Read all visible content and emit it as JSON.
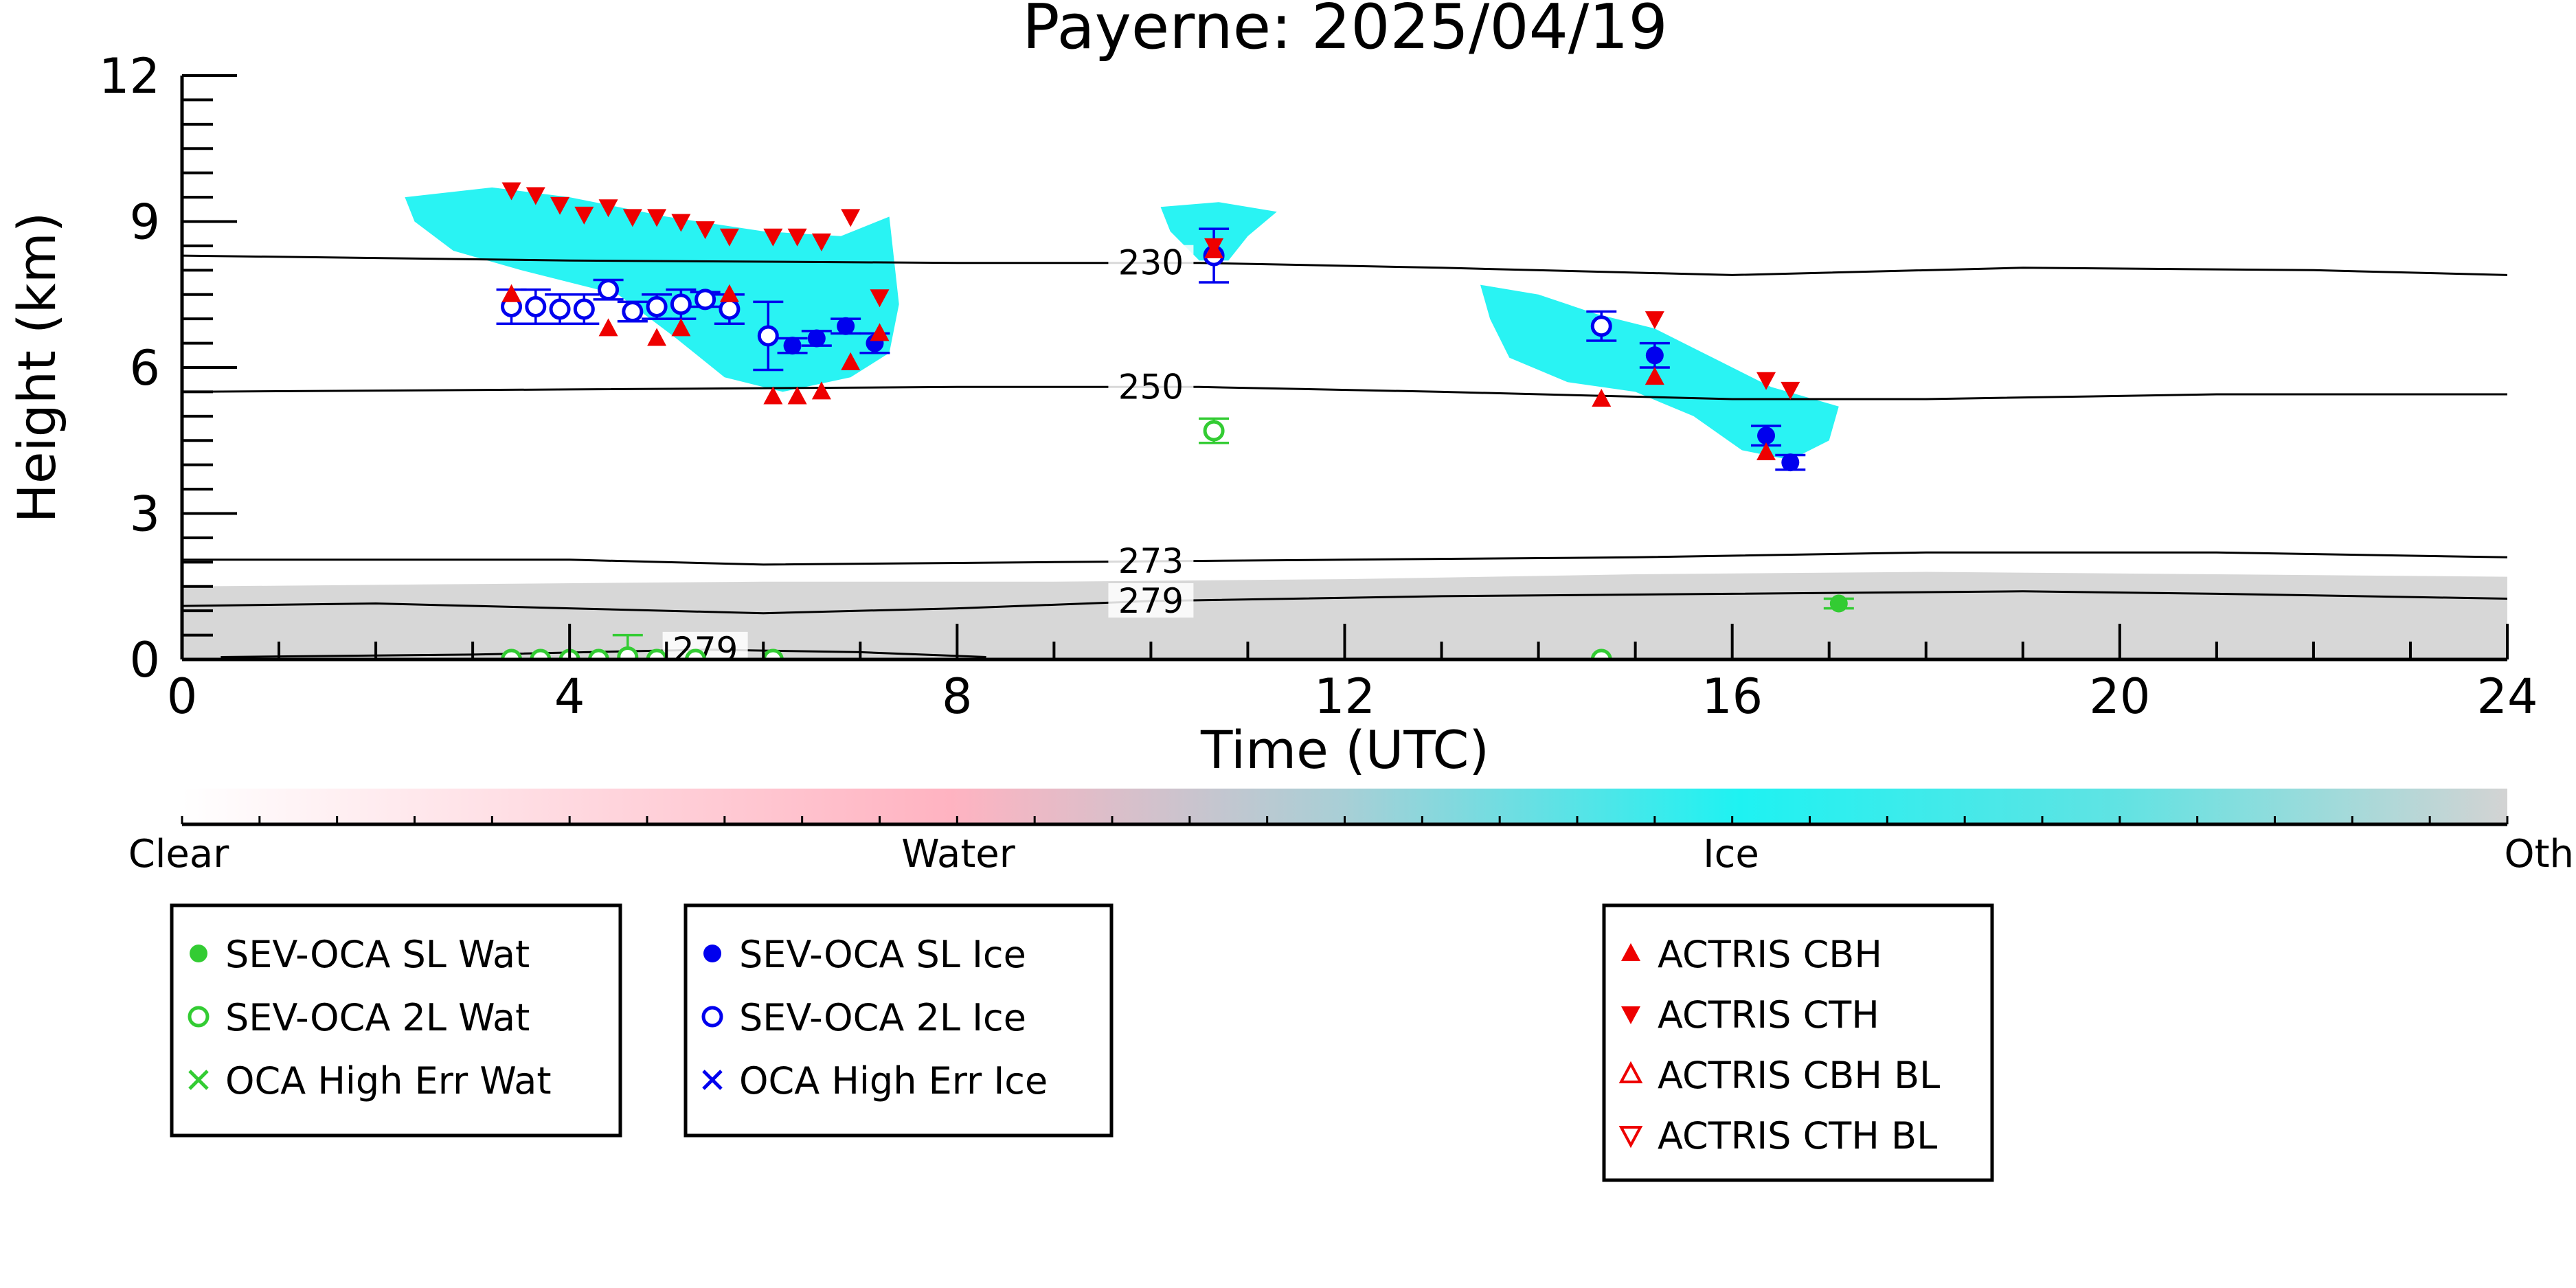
{
  "chart_data": {
    "type": "scatter",
    "title": "Payerne: 2025/04/19",
    "xlabel": "Time (UTC)",
    "ylabel": "Height (km)",
    "xlim": [
      0,
      24
    ],
    "ylim": [
      0,
      12
    ],
    "xticks": [
      "0",
      "4",
      "8",
      "12",
      "16",
      "20",
      "24"
    ],
    "yticks": [
      "0",
      "3",
      "6",
      "9",
      "12"
    ],
    "grid": false,
    "isotherms": [
      {
        "label": "230",
        "label_x": 10.0,
        "points": [
          [
            0,
            8.3
          ],
          [
            4,
            8.2
          ],
          [
            8,
            8.15
          ],
          [
            10.5,
            8.15
          ],
          [
            13,
            8.05
          ],
          [
            16,
            7.9
          ],
          [
            19,
            8.05
          ],
          [
            22,
            8.0
          ],
          [
            24,
            7.9
          ]
        ]
      },
      {
        "label": "250",
        "label_x": 10.0,
        "points": [
          [
            0,
            5.5
          ],
          [
            4,
            5.55
          ],
          [
            8,
            5.6
          ],
          [
            10.5,
            5.6
          ],
          [
            13,
            5.5
          ],
          [
            16,
            5.35
          ],
          [
            18,
            5.35
          ],
          [
            21,
            5.45
          ],
          [
            24,
            5.45
          ]
        ]
      },
      {
        "label": "273",
        "label_x": 10.0,
        "points": [
          [
            0,
            2.05
          ],
          [
            4,
            2.05
          ],
          [
            6,
            1.95
          ],
          [
            9,
            2.0
          ],
          [
            12,
            2.05
          ],
          [
            15,
            2.1
          ],
          [
            18,
            2.2
          ],
          [
            21,
            2.2
          ],
          [
            24,
            2.1
          ]
        ]
      },
      {
        "label": "279",
        "label_x": 10.0,
        "points": [
          [
            0,
            1.1
          ],
          [
            2,
            1.15
          ],
          [
            4,
            1.05
          ],
          [
            6,
            0.95
          ],
          [
            8,
            1.05
          ],
          [
            10,
            1.2
          ],
          [
            13,
            1.3
          ],
          [
            16,
            1.35
          ],
          [
            19,
            1.4
          ],
          [
            21,
            1.35
          ],
          [
            24,
            1.25
          ]
        ]
      },
      {
        "label": "279",
        "label_x": 5.4,
        "points": [
          [
            0.4,
            0.05
          ],
          [
            3,
            0.1
          ],
          [
            5.4,
            0.2
          ],
          [
            7,
            0.15
          ],
          [
            8.3,
            0.05
          ]
        ]
      }
    ],
    "cloud_mask": {
      "colors": {
        "ice": "#1ef2f2",
        "water": "#ffb3c1",
        "other": "#d3d3d3"
      },
      "regions": [
        {
          "class": "ice",
          "points": [
            [
              2.3,
              9.5
            ],
            [
              3.2,
              9.7
            ],
            [
              4,
              9.5
            ],
            [
              5,
              9.1
            ],
            [
              6,
              8.8
            ],
            [
              6.8,
              8.7
            ],
            [
              7.3,
              9.1
            ],
            [
              7.4,
              7.3
            ],
            [
              7.3,
              6.3
            ],
            [
              6.9,
              5.8
            ],
            [
              6.2,
              5.5
            ],
            [
              5.6,
              5.8
            ],
            [
              5.1,
              6.6
            ],
            [
              4.5,
              7.5
            ],
            [
              3.5,
              8.0
            ],
            [
              2.8,
              8.4
            ],
            [
              2.4,
              9.0
            ]
          ]
        },
        {
          "class": "ice",
          "points": [
            [
              10.1,
              9.3
            ],
            [
              10.7,
              9.4
            ],
            [
              11.3,
              9.2
            ],
            [
              11.0,
              8.7
            ],
            [
              10.8,
              8.2
            ],
            [
              10.5,
              8.2
            ],
            [
              10.2,
              8.8
            ]
          ]
        },
        {
          "class": "ice",
          "points": [
            [
              13.4,
              7.7
            ],
            [
              14.0,
              7.5
            ],
            [
              14.6,
              7.1
            ],
            [
              15.2,
              6.8
            ],
            [
              15.8,
              6.2
            ],
            [
              16.4,
              5.6
            ],
            [
              17.1,
              5.2
            ],
            [
              17.0,
              4.5
            ],
            [
              16.6,
              4.1
            ],
            [
              16.1,
              4.3
            ],
            [
              15.6,
              5.0
            ],
            [
              15.0,
              5.5
            ],
            [
              14.3,
              5.7
            ],
            [
              13.7,
              6.2
            ],
            [
              13.5,
              7.0
            ]
          ]
        },
        {
          "class": "other",
          "points": [
            [
              0,
              1.5
            ],
            [
              3,
              1.55
            ],
            [
              6,
              1.6
            ],
            [
              9,
              1.6
            ],
            [
              12,
              1.65
            ],
            [
              15,
              1.75
            ],
            [
              18,
              1.8
            ],
            [
              21,
              1.75
            ],
            [
              24,
              1.7
            ],
            [
              24,
              0
            ],
            [
              0,
              0
            ]
          ]
        }
      ]
    },
    "series": [
      {
        "name": "SEV-OCA SL Wat",
        "color": "#33cc33",
        "marker": "filled-circle",
        "points": [
          {
            "x": 17.1,
            "y": 1.15,
            "err": 0.1
          }
        ]
      },
      {
        "name": "SEV-OCA 2L Wat",
        "color": "#33cc33",
        "marker": "open-circle",
        "points": [
          {
            "x": 10.65,
            "y": 4.7,
            "err": 0.25
          },
          {
            "x": 3.4,
            "y": 0.0
          },
          {
            "x": 3.7,
            "y": 0.0
          },
          {
            "x": 4.0,
            "y": 0.0
          },
          {
            "x": 4.3,
            "y": 0.0
          },
          {
            "x": 4.6,
            "y": 0.05,
            "err": 0.45
          },
          {
            "x": 4.9,
            "y": 0.0
          },
          {
            "x": 5.3,
            "y": 0.0
          },
          {
            "x": 6.1,
            "y": 0.0
          },
          {
            "x": 14.65,
            "y": 0.0
          }
        ]
      },
      {
        "name": "OCA High Err Wat",
        "color": "#33cc33",
        "marker": "x",
        "points": []
      },
      {
        "name": "SEV-OCA SL Ice",
        "color": "#0000ee",
        "marker": "filled-circle",
        "points": [
          {
            "x": 6.3,
            "y": 6.45,
            "err": 0.15
          },
          {
            "x": 6.55,
            "y": 6.6,
            "err": 0.15
          },
          {
            "x": 6.85,
            "y": 6.85,
            "err": 0.15
          },
          {
            "x": 7.15,
            "y": 6.5,
            "err": 0.2
          },
          {
            "x": 15.2,
            "y": 6.25,
            "err": 0.25
          },
          {
            "x": 16.35,
            "y": 4.6,
            "err": 0.2
          },
          {
            "x": 16.6,
            "y": 4.05,
            "err": 0.15
          }
        ]
      },
      {
        "name": "SEV-OCA 2L Ice",
        "color": "#0000ee",
        "marker": "open-circle",
        "points": [
          {
            "x": 3.4,
            "y": 7.25,
            "err": 0.35
          },
          {
            "x": 3.65,
            "y": 7.25,
            "err": 0.35
          },
          {
            "x": 3.9,
            "y": 7.2,
            "err": 0.3
          },
          {
            "x": 4.15,
            "y": 7.2,
            "err": 0.3
          },
          {
            "x": 4.4,
            "y": 7.6,
            "err": 0.2
          },
          {
            "x": 4.65,
            "y": 7.15,
            "err": 0.2
          },
          {
            "x": 4.9,
            "y": 7.25,
            "err": 0.25
          },
          {
            "x": 5.15,
            "y": 7.3,
            "err": 0.3
          },
          {
            "x": 5.4,
            "y": 7.4,
            "err": 0.15
          },
          {
            "x": 5.65,
            "y": 7.2,
            "err": 0.3
          },
          {
            "x": 6.05,
            "y": 6.65,
            "err": 0.7
          },
          {
            "x": 10.65,
            "y": 8.3,
            "err": 0.55
          },
          {
            "x": 14.65,
            "y": 6.85,
            "err": 0.3
          }
        ]
      },
      {
        "name": "OCA High Err Ice",
        "color": "#0000ee",
        "marker": "x",
        "points": []
      },
      {
        "name": "ACTRIS CBH",
        "color": "#ee0000",
        "marker": "filled-triangle-up",
        "points": [
          {
            "x": 3.4,
            "y": 7.5
          },
          {
            "x": 4.4,
            "y": 6.8
          },
          {
            "x": 4.9,
            "y": 6.6
          },
          {
            "x": 5.15,
            "y": 6.8
          },
          {
            "x": 5.65,
            "y": 7.5
          },
          {
            "x": 6.1,
            "y": 5.4
          },
          {
            "x": 6.35,
            "y": 5.4
          },
          {
            "x": 6.6,
            "y": 5.5
          },
          {
            "x": 6.9,
            "y": 6.1
          },
          {
            "x": 7.2,
            "y": 6.7
          },
          {
            "x": 10.65,
            "y": 8.4
          },
          {
            "x": 14.65,
            "y": 5.35
          },
          {
            "x": 15.2,
            "y": 5.8
          },
          {
            "x": 16.35,
            "y": 4.25
          }
        ]
      },
      {
        "name": "ACTRIS CTH",
        "color": "#ee0000",
        "marker": "filled-triangle-down",
        "points": [
          {
            "x": 3.4,
            "y": 9.65
          },
          {
            "x": 3.65,
            "y": 9.55
          },
          {
            "x": 3.9,
            "y": 9.35
          },
          {
            "x": 4.15,
            "y": 9.15
          },
          {
            "x": 4.4,
            "y": 9.3
          },
          {
            "x": 4.65,
            "y": 9.1
          },
          {
            "x": 4.9,
            "y": 9.1
          },
          {
            "x": 5.15,
            "y": 9.0
          },
          {
            "x": 5.4,
            "y": 8.85
          },
          {
            "x": 5.65,
            "y": 8.7
          },
          {
            "x": 6.1,
            "y": 8.7
          },
          {
            "x": 6.35,
            "y": 8.7
          },
          {
            "x": 6.6,
            "y": 8.6
          },
          {
            "x": 6.9,
            "y": 9.1
          },
          {
            "x": 7.2,
            "y": 7.45
          },
          {
            "x": 10.65,
            "y": 8.5
          },
          {
            "x": 15.2,
            "y": 7.0
          },
          {
            "x": 16.35,
            "y": 5.75
          },
          {
            "x": 16.6,
            "y": 5.55
          }
        ]
      },
      {
        "name": "ACTRIS CBH BL",
        "color": "#ee0000",
        "marker": "open-triangle-up",
        "points": []
      },
      {
        "name": "ACTRIS CTH BL",
        "color": "#ee0000",
        "marker": "open-triangle-down",
        "points": []
      }
    ],
    "colorbar": {
      "labels": [
        "Clear",
        "Water",
        "Ice",
        "Other"
      ],
      "stops": [
        "#ffffff",
        "#ffb3c1",
        "#1ef2f2",
        "#d3d3d3"
      ]
    },
    "legends": [
      {
        "entries": [
          "SEV-OCA SL Wat",
          "SEV-OCA 2L Wat",
          "OCA High Err Wat"
        ]
      },
      {
        "entries": [
          "SEV-OCA SL Ice",
          "SEV-OCA 2L Ice",
          "OCA High Err Ice"
        ]
      },
      {
        "entries": [
          "ACTRIS CBH",
          "ACTRIS CTH",
          "ACTRIS CBH BL",
          "ACTRIS CTH BL"
        ]
      }
    ]
  }
}
